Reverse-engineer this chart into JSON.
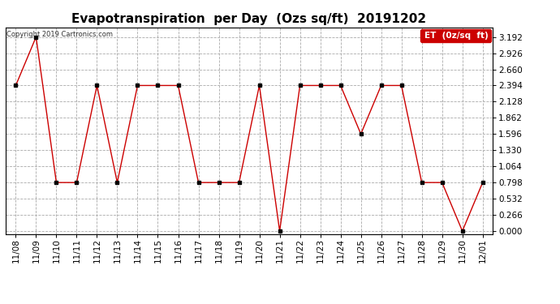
{
  "title": "Evapotranspiration  per Day  (Ozs sq/ft)  20191202",
  "copyright": "Copyright 2019 Cartronics.com",
  "legend_label": "ET  (0z/sq  ft)",
  "x_labels": [
    "11/08",
    "11/09",
    "11/10",
    "11/11",
    "11/12",
    "11/13",
    "11/14",
    "11/15",
    "11/16",
    "11/17",
    "11/18",
    "11/19",
    "11/20",
    "11/21",
    "11/22",
    "11/23",
    "11/24",
    "11/25",
    "11/26",
    "11/27",
    "11/28",
    "11/29",
    "11/30",
    "12/01"
  ],
  "y_values": [
    2.394,
    3.192,
    0.798,
    0.798,
    2.394,
    0.798,
    2.394,
    2.394,
    2.394,
    0.798,
    0.798,
    0.798,
    2.394,
    0.0,
    2.394,
    2.394,
    2.394,
    1.596,
    2.394,
    2.394,
    0.798,
    0.798,
    0.0,
    0.798
  ],
  "y_ticks": [
    0.0,
    0.266,
    0.532,
    0.798,
    1.064,
    1.33,
    1.596,
    1.862,
    2.128,
    2.394,
    2.66,
    2.926,
    3.192
  ],
  "line_color": "#cc0000",
  "marker_color": "#000000",
  "bg_color": "#ffffff",
  "grid_color": "#aaaaaa",
  "title_fontsize": 11,
  "tick_fontsize": 7.5,
  "copyright_fontsize": 6,
  "ylim": [
    -0.05,
    3.35
  ],
  "legend_bg": "#cc0000",
  "legend_text_color": "#ffffff",
  "legend_fontsize": 7.5
}
